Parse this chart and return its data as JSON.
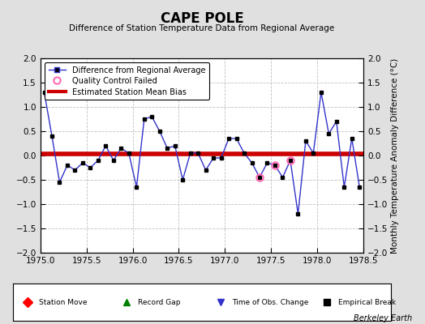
{
  "title": "CAPE POLE",
  "subtitle": "Difference of Station Temperature Data from Regional Average",
  "ylabel": "Monthly Temperature Anomaly Difference (°C)",
  "xlim": [
    1975,
    1978.5
  ],
  "ylim": [
    -2,
    2
  ],
  "yticks": [
    -2,
    -1.5,
    -1,
    -0.5,
    0,
    0.5,
    1,
    1.5,
    2
  ],
  "xticks": [
    1975,
    1975.5,
    1976,
    1976.5,
    1977,
    1977.5,
    1978,
    1978.5
  ],
  "bias_line_y": 0.03,
  "background_color": "#e0e0e0",
  "plot_bg_color": "#ffffff",
  "line_color": "#3333cc",
  "bias_color": "#cc0000",
  "marker_color": "#000000",
  "qc_fail_color": "#ff69b4",
  "x_data": [
    1975.042,
    1975.125,
    1975.208,
    1975.292,
    1975.375,
    1975.458,
    1975.542,
    1975.625,
    1975.708,
    1975.792,
    1975.875,
    1975.958,
    1976.042,
    1976.125,
    1976.208,
    1976.292,
    1976.375,
    1976.458,
    1976.542,
    1976.625,
    1976.708,
    1976.792,
    1976.875,
    1976.958,
    1977.042,
    1977.125,
    1977.208,
    1977.292,
    1977.375,
    1977.458,
    1977.542,
    1977.625,
    1977.708,
    1977.792,
    1977.875,
    1977.958,
    1978.042,
    1978.125,
    1978.208,
    1978.292,
    1978.375,
    1978.458
  ],
  "y_data": [
    1.3,
    0.4,
    -0.55,
    -0.2,
    -0.3,
    -0.15,
    -0.25,
    -0.1,
    0.2,
    -0.1,
    0.15,
    0.05,
    -0.65,
    0.75,
    0.8,
    0.5,
    0.15,
    0.2,
    -0.5,
    0.05,
    0.05,
    -0.3,
    -0.05,
    -0.05,
    0.35,
    0.35,
    0.05,
    -0.15,
    -0.45,
    -0.15,
    -0.2,
    -0.45,
    -0.1,
    -1.2,
    0.3,
    0.05,
    1.3,
    0.45,
    0.7,
    -0.65,
    0.35,
    -0.65
  ],
  "qc_fail_indices": [
    28,
    30,
    32
  ],
  "watermark": "Berkeley Earth"
}
